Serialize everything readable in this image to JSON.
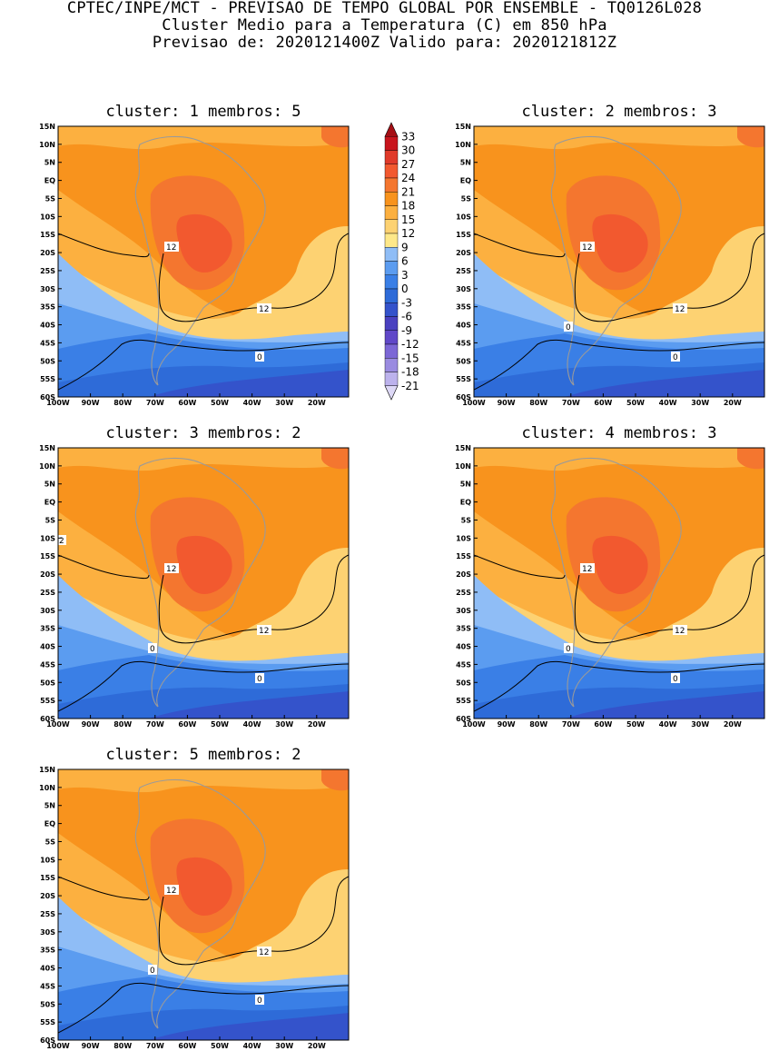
{
  "header": {
    "line1": "CPTEC/INPE/MCT - PREVISAO DE TEMPO GLOBAL POR ENSEMBLE - TQ0126L028",
    "line2": "Cluster Medio para a Temperatura (C) em 850 hPa",
    "line3": "Previsao de: 2020121400Z   Valido para: 2020121812Z"
  },
  "axes": {
    "lat_labels": [
      "15N",
      "10N",
      "5N",
      "EQ",
      "5S",
      "10S",
      "15S",
      "20S",
      "25S",
      "30S",
      "35S",
      "40S",
      "45S",
      "50S",
      "55S",
      "60S"
    ],
    "lon_labels": [
      "100W",
      "90W",
      "80W",
      "70W",
      "60W",
      "50W",
      "40W",
      "30W",
      "20W"
    ]
  },
  "colorbar": {
    "labels": [
      "33",
      "30",
      "27",
      "24",
      "21",
      "18",
      "15",
      "12",
      "9",
      "6",
      "3",
      "0",
      "-3",
      "-6",
      "-9",
      "-12",
      "-15",
      "-18",
      "-21"
    ],
    "colors": [
      "#a50f15",
      "#c8151d",
      "#e03a2a",
      "#f2592f",
      "#f4762f",
      "#f8931d",
      "#fcb040",
      "#fdd272",
      "#fee889",
      "#8fbdf6",
      "#5b9cf0",
      "#3a7fe6",
      "#2e6bd8",
      "#3453cb",
      "#4a41c0",
      "#6048c8",
      "#7c67d6",
      "#9a8be0",
      "#bcb2ec",
      "#ddd8f6"
    ]
  },
  "panels": [
    {
      "title": "cluster: 1   membros: 5",
      "contour_labels": [
        "12",
        "12",
        "0"
      ]
    },
    {
      "title": "cluster: 2   membros: 3",
      "contour_labels": [
        "12",
        "12",
        "0",
        "0"
      ]
    },
    {
      "title": "cluster: 3   membros: 2",
      "contour_labels": [
        "2",
        "12",
        "12",
        "0",
        "0"
      ]
    },
    {
      "title": "cluster: 4   membros: 3",
      "contour_labels": [
        "12",
        "12",
        "0",
        "0"
      ]
    },
    {
      "title": "cluster: 5   membros: 2",
      "contour_labels": [
        "12",
        "12",
        "0",
        "0"
      ]
    }
  ]
}
